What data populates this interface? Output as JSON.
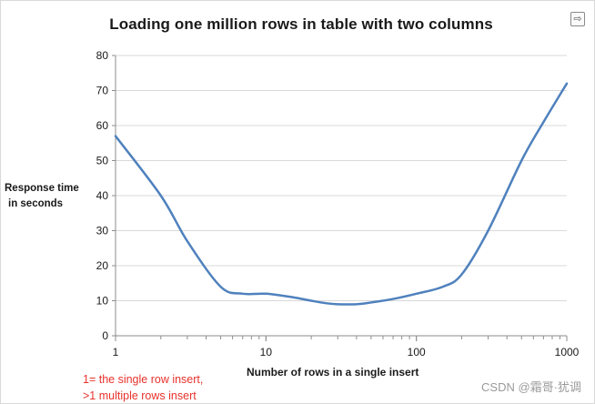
{
  "chart_data": {
    "type": "line",
    "title": "Loading one million rows in table with two columns",
    "xlabel": "Number of rows in a single insert",
    "ylabel": [
      "Response time",
      "in seconds"
    ],
    "x_scale": "log",
    "xlim": [
      1,
      1000
    ],
    "ylim": [
      0,
      80
    ],
    "x_ticks": [
      1,
      10,
      100,
      1000
    ],
    "y_ticks": [
      0,
      10,
      20,
      30,
      40,
      50,
      60,
      70,
      80
    ],
    "grid": "horizontal",
    "legend": "none",
    "series": [
      {
        "x": [
          1,
          2,
          3,
          5,
          7,
          10,
          15,
          20,
          25,
          30,
          40,
          50,
          70,
          100,
          150,
          200,
          300,
          500,
          700,
          1000
        ],
        "values": [
          57,
          40,
          27,
          14,
          12,
          12,
          11,
          10,
          9.3,
          9,
          9,
          9.5,
          10.5,
          12,
          14,
          17.5,
          30,
          50,
          61,
          72
        ],
        "color": "#4f81bd"
      }
    ],
    "annotations": [
      "1= the single row  insert,",
      ">1 multiple rows insert"
    ]
  },
  "ui": {
    "watermark": "CSDN @霜哥·犹调",
    "expand_icon": "expand-icon"
  }
}
